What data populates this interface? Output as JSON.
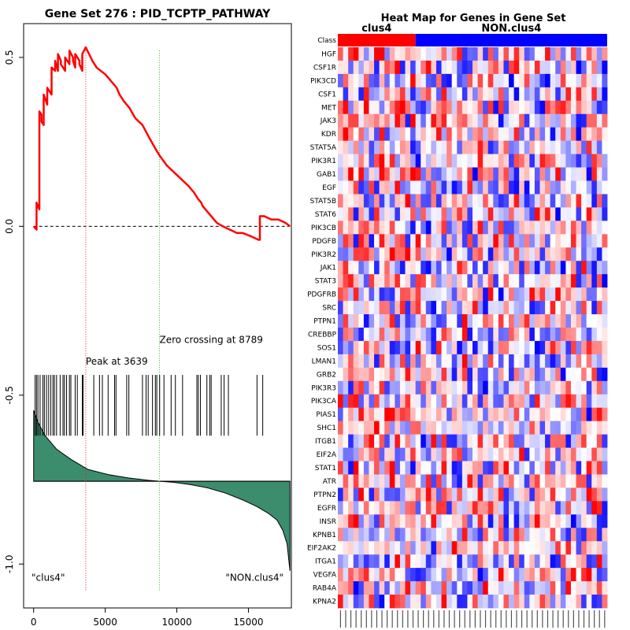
{
  "chart_data": [
    {
      "type": "line",
      "panel": "enrichment-plot",
      "title": "Gene Set  276 : PID_TCPTP_PATHWAY",
      "xlabel": "",
      "ylabel": "",
      "xlim": [
        -700,
        18000
      ],
      "ylim": [
        -1.13,
        0.6
      ],
      "x_ticks": [
        0,
        5000,
        10000,
        15000
      ],
      "y_ticks": [
        0.5,
        0.0,
        -0.5,
        -1.0
      ],
      "x_tick_labels": [
        "0",
        "5000",
        "10000",
        "15000"
      ],
      "y_tick_labels": [
        "0.5",
        "0.0",
        "-0.5",
        "-1.0"
      ],
      "colors": {
        "es_line": "#ff0000",
        "ranked_fill": "#3c8c6e",
        "peak_line": "#dd2222",
        "zero_line": "#22bb22",
        "hit": "#000000"
      },
      "running_es": {
        "name": "Running enrichment score",
        "x": [
          0,
          200,
          200,
          400,
          400,
          550,
          550,
          700,
          700,
          950,
          950,
          1250,
          1250,
          1500,
          1500,
          1700,
          1700,
          1900,
          1900,
          2200,
          2200,
          2500,
          2500,
          2750,
          2750,
          2900,
          2900,
          3200,
          3200,
          3400,
          3400,
          3639,
          4100,
          4400,
          5000,
          5200,
          5800,
          6000,
          6300,
          6700,
          7100,
          7600,
          8100,
          8500,
          8789,
          9300,
          9800,
          10300,
          10800,
          11200,
          11500,
          11700,
          11800,
          12000,
          12200,
          12400,
          12600,
          12800,
          13200,
          13700,
          14200,
          14600,
          15200,
          15700,
          15800,
          15800,
          16100,
          16600,
          17100,
          17600,
          17900
        ],
        "y": [
          0.0,
          -0.01,
          0.07,
          0.05,
          0.34,
          0.33,
          0.31,
          0.3,
          0.39,
          0.36,
          0.41,
          0.39,
          0.47,
          0.46,
          0.49,
          0.46,
          0.51,
          0.49,
          0.48,
          0.46,
          0.5,
          0.48,
          0.52,
          0.5,
          0.49,
          0.47,
          0.51,
          0.49,
          0.48,
          0.46,
          0.51,
          0.53,
          0.49,
          0.47,
          0.45,
          0.44,
          0.41,
          0.39,
          0.37,
          0.35,
          0.32,
          0.3,
          0.26,
          0.23,
          0.21,
          0.18,
          0.16,
          0.14,
          0.12,
          0.1,
          0.08,
          0.07,
          0.06,
          0.05,
          0.04,
          0.03,
          0.02,
          0.01,
          0.0,
          -0.01,
          -0.02,
          -0.02,
          -0.03,
          -0.04,
          -0.04,
          0.03,
          0.03,
          0.02,
          0.02,
          0.01,
          0.0
        ]
      },
      "ranked_metric": {
        "name": "Ranked list metric",
        "baseline": -0.755,
        "x": [
          0,
          300,
          800,
          1600,
          2600,
          3800,
          5200,
          6600,
          8000,
          8789,
          9800,
          11000,
          12200,
          13400,
          14600,
          15600,
          16400,
          17000,
          17400,
          17700,
          17900
        ],
        "y": [
          -0.545,
          -0.58,
          -0.62,
          -0.66,
          -0.69,
          -0.72,
          -0.735,
          -0.745,
          -0.752,
          -0.755,
          -0.758,
          -0.765,
          -0.775,
          -0.79,
          -0.81,
          -0.83,
          -0.85,
          -0.87,
          -0.9,
          -0.94,
          -1.02
        ]
      },
      "hits": {
        "name": "Gene set member positions",
        "y_range": [
          -0.62,
          -0.44
        ],
        "x": [
          100,
          200,
          300,
          450,
          650,
          750,
          900,
          1050,
          1200,
          1350,
          1450,
          1600,
          1850,
          2050,
          2150,
          2300,
          2500,
          2600,
          2900,
          3050,
          3400,
          3450,
          4200,
          4600,
          4800,
          5200,
          5650,
          5750,
          6500,
          6650,
          7600,
          7850,
          8000,
          8300,
          8500,
          8600,
          8800,
          9100,
          9600,
          9900,
          10400,
          11400,
          11500,
          11650,
          12100,
          12300,
          12400,
          13100,
          13300,
          13600,
          15600,
          16000
        ]
      },
      "peak": {
        "x": 3639,
        "label": "Peak at 3639"
      },
      "zero_crossing": {
        "x": 8789,
        "label": "Zero crossing at 8789"
      },
      "corner_labels": {
        "left": "\"clus4\"",
        "right": "\"NON.clus4\""
      }
    },
    {
      "type": "heatmap",
      "panel": "gene-heatmap",
      "title": "Heat Map for Genes in Gene Set",
      "class_row_label": "Class",
      "groups": [
        {
          "name": "clus4",
          "count": 15,
          "color": "#ff0000"
        },
        {
          "name": "NON.clus4",
          "count": 37,
          "color": "#0000ff"
        }
      ],
      "genes": [
        "HGF",
        "CSF1R",
        "PIK3CD",
        "CSF1",
        "MET",
        "JAK3",
        "KDR",
        "STAT5A",
        "PIK3R1",
        "GAB1",
        "EGF",
        "STAT5B",
        "STAT6",
        "PIK3CB",
        "PDGFB",
        "PIK3R2",
        "JAK1",
        "STAT3",
        "PDGFRB",
        "SRC",
        "PTPN1",
        "CREBBP",
        "SOS1",
        "LMAN1",
        "GRB2",
        "PIK3R3",
        "PIK3CA",
        "PIAS1",
        "SHC1",
        "ITGB1",
        "EIF2A",
        "STAT1",
        "ATR",
        "PTPN2",
        "EGFR",
        "INSR",
        "KPNB1",
        "EIF2AK2",
        "ITGA1",
        "VEGFA",
        "RAB4A",
        "KPNA2"
      ],
      "sample_count": 52,
      "value_range": [
        -1,
        1
      ],
      "color_scale": {
        "low": "#0000ff",
        "mid": "#ffffff",
        "high": "#ff0000"
      },
      "column_label_note": "sample labels are rendered as tiny illegible vertical glyph ticks"
    }
  ]
}
